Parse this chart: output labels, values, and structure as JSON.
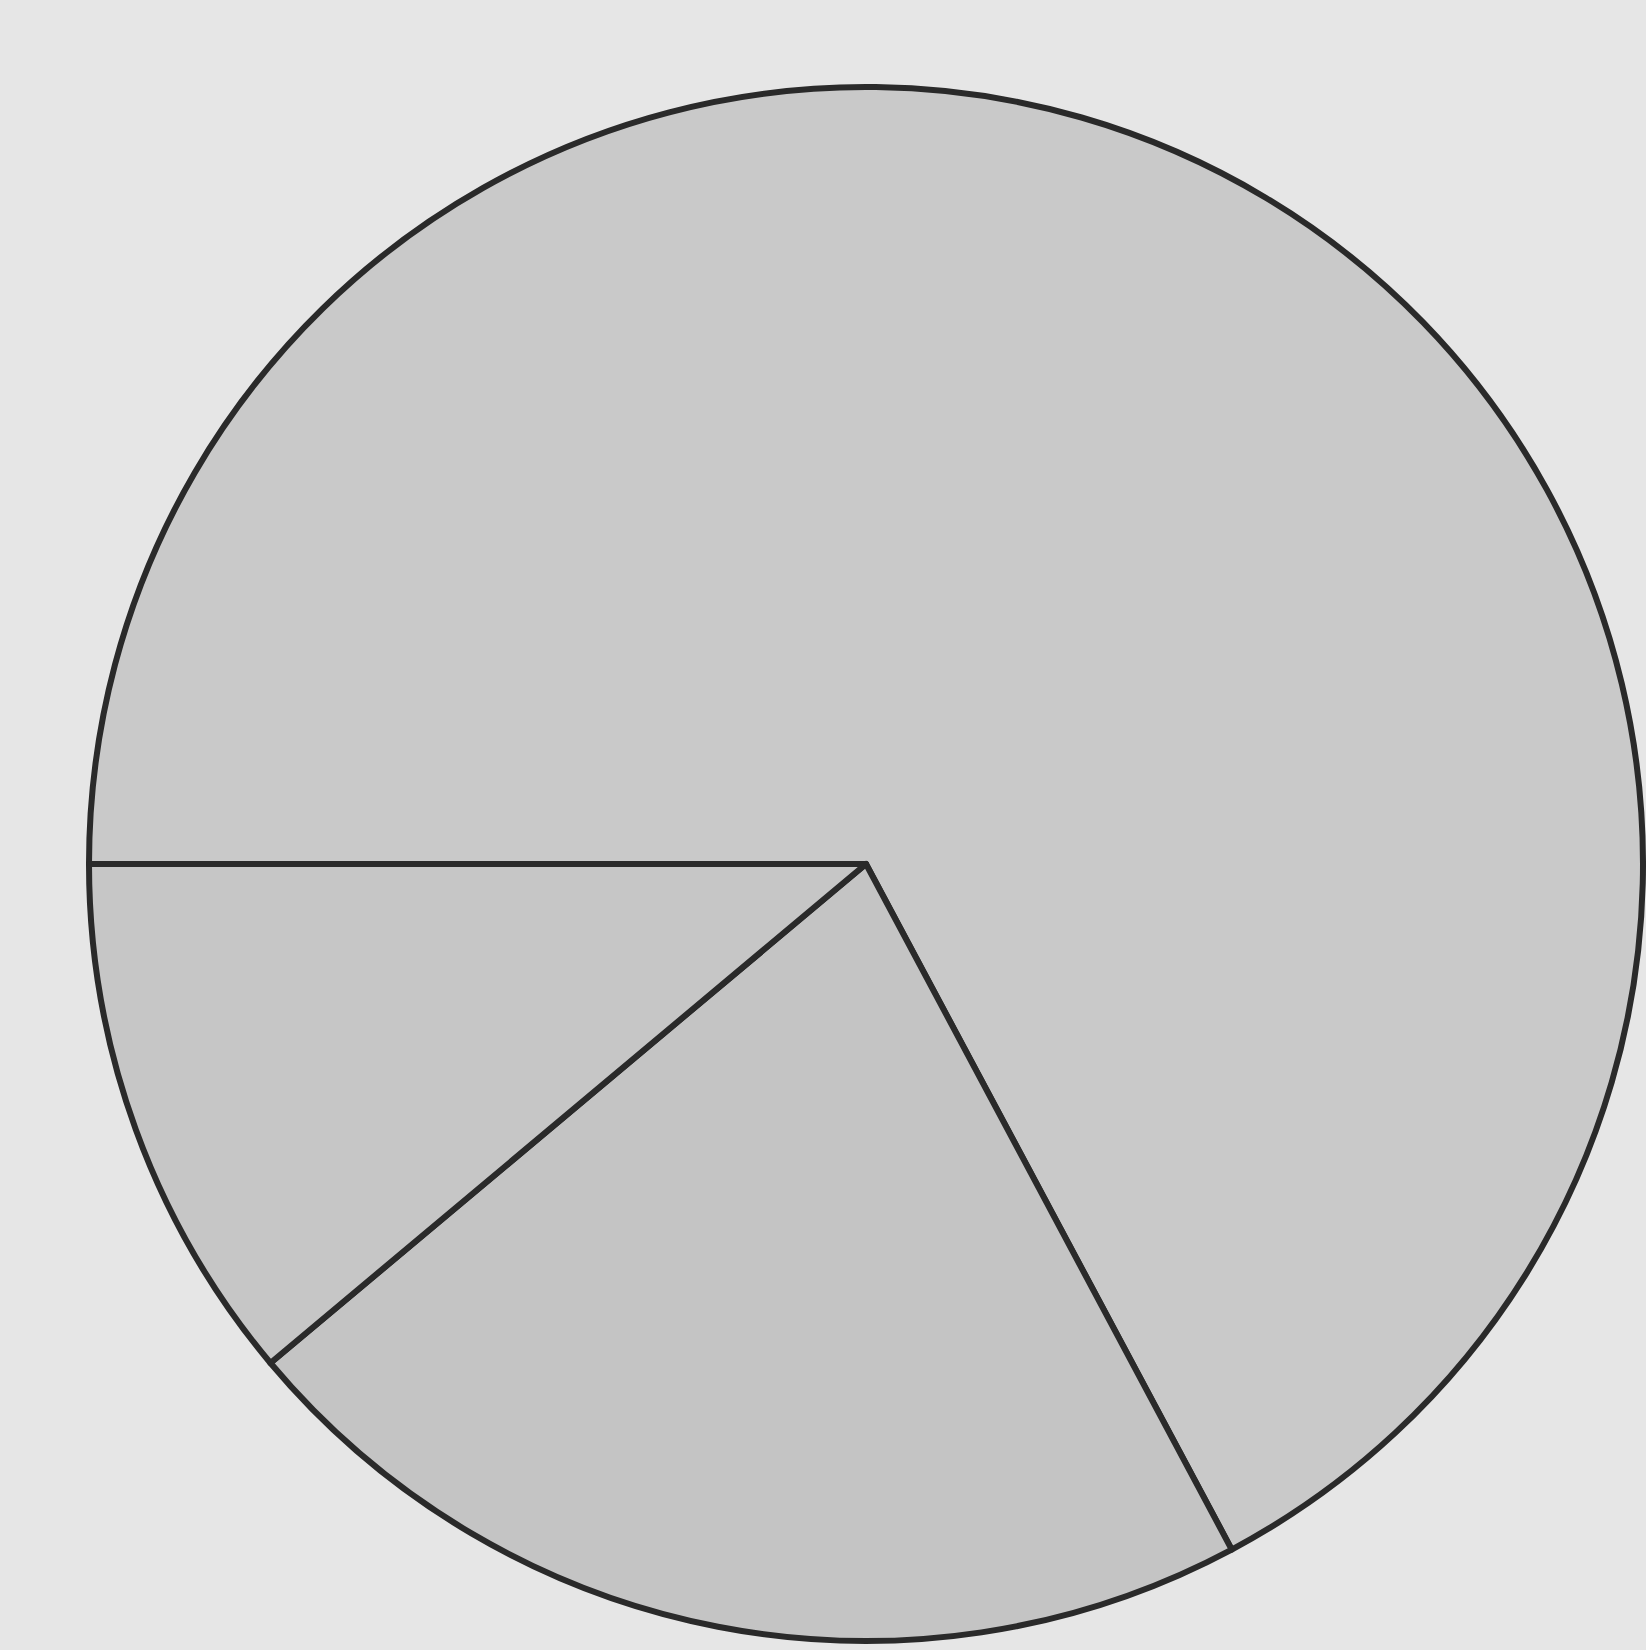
{
  "chart_data": {
    "type": "pie",
    "categories": [
      null,
      null,
      null
    ],
    "values": [
      67.2,
      21.7,
      11.1
    ],
    "colors": [
      "#c9c9c9",
      "#c4c4c4",
      "#c6c6c6"
    ],
    "legend": false
  }
}
